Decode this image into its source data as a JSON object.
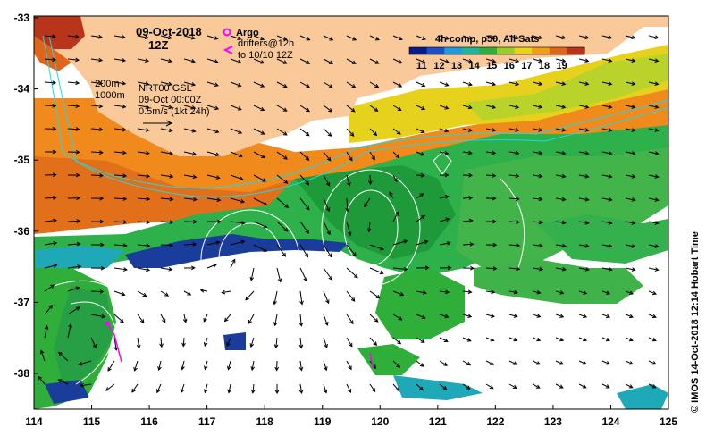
{
  "header": {
    "date": "09-Oct-2018",
    "hour": "12Z"
  },
  "legend": {
    "argo_label": "Argo",
    "drifter_label_1": "drifters@12h",
    "drifter_label_2": "to 10/10 12Z",
    "colorbar_title": "4h comp, p50, All Sats",
    "colorbar_ticks": [
      "11",
      "12",
      "13",
      "14",
      "15",
      "16",
      "17",
      "18",
      "19"
    ],
    "colorbar_colors": [
      "#0a1a8a",
      "#1a4fc8",
      "#1e9be0",
      "#1fb59a",
      "#2fae3a",
      "#9acc2a",
      "#ead21a",
      "#f0a018",
      "#e0641a",
      "#b8341a"
    ],
    "argo_color": "#ff00ff",
    "drifter_color": "#ff00ff"
  },
  "annotations": {
    "iso_200": "200m",
    "iso_1000": "1000m",
    "gsl_line1": "NRT00 GSL",
    "gsl_line2": "09-Oct 00:00Z",
    "scale_arrow": "0.5m/s (1kt 24h)"
  },
  "axes": {
    "x_ticks": [
      "114",
      "115",
      "116",
      "117",
      "118",
      "119",
      "120",
      "121",
      "122",
      "123",
      "124",
      "125"
    ],
    "y_ticks": [
      "-33",
      "-34",
      "-35",
      "-36",
      "-37",
      "-38"
    ]
  },
  "credit": "© IMOS 14-Oct-2018 12:14 Hobart Time",
  "colors": {
    "land": "#f9c99a",
    "ocean_bg": "#ffffff",
    "contour": "#ffffff",
    "isobath": "#1ed8e8"
  }
}
